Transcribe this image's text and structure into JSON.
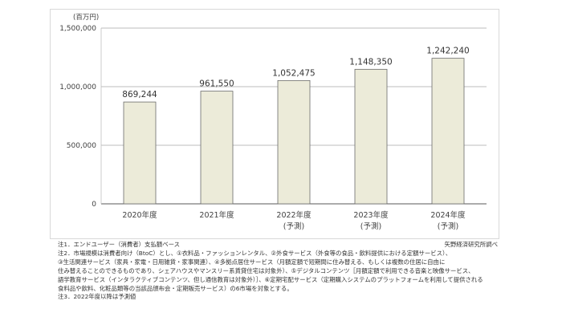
{
  "chart_data": {
    "type": "bar",
    "unit_label": "(百万円)",
    "categories": [
      "2020年度",
      "2021年度",
      "2022年度",
      "2023年度",
      "2024年度"
    ],
    "category_sublabels": [
      "",
      "",
      "(予測)",
      "(予測)",
      "(予測)"
    ],
    "values": [
      869244,
      961550,
      1052475,
      1148350,
      1242240
    ],
    "value_labels": [
      "869,244",
      "961,550",
      "1,052,475",
      "1,148,350",
      "1,242,240"
    ],
    "ylim": [
      0,
      1500000
    ],
    "yticks": [
      0,
      500000,
      1000000,
      1500000
    ],
    "ytick_labels": [
      "0",
      "500,000",
      "1,000,000",
      "1,500,000"
    ],
    "grid": true,
    "bar_color": "#ecebd9",
    "bar_edge_color": "#6b6b6b"
  },
  "notes": [
    "注1．エンドユーザー（消費者）支払額ベース",
    "注2．市場規模は消費者向け（BtoC）とし、①衣料品・ファッションレンタル、②外食サービス（外食等の食品・飲料提供における定額サービス）、",
    "③生活関連サービス（家具・家電・日用雑貨・家事関連）、④多拠点居住サービス（月額定額で短期間に住み替える、もしくは複数の住居に自由に",
    "住み替えることのできるものであり、シェアハウスやマンスリー系賃貸住宅は対象外）、⑤デジタルコンテンツ［月額定額で利用できる音楽と映像サービス、",
    "語学教育サービス（インタラクティブコンテンツ、但し通信教育は対象外）］、⑥定期宅配サービス（定期購入システムのプラットフォームを利用して提供される",
    "食料品や飲料、化粧品類等の当該品頒布会・定期販売サービス）の6市場を対象とする。",
    "注3．2022年度以降は予測値"
  ],
  "source": "矢野経済研究所調べ"
}
